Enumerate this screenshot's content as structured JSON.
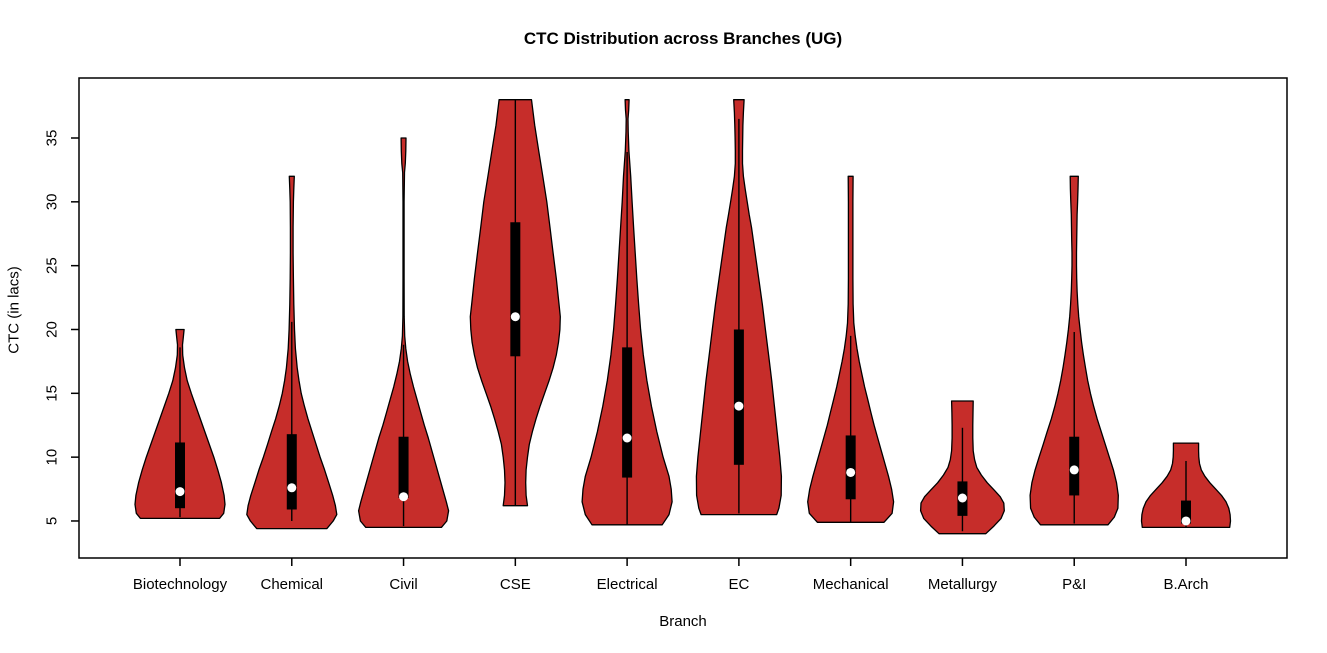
{
  "chart_data": {
    "type": "violin",
    "title": "CTC Distribution across Branches (UG)",
    "xlabel": "Branch",
    "ylabel": "CTC (in lacs)",
    "ylim": [
      2.1,
      39.7
    ],
    "yticks": [
      5,
      10,
      15,
      20,
      25,
      30,
      35
    ],
    "grid": "off",
    "fill_color": "#C62D2A",
    "outline_color": "#000000",
    "box_color": "#000000",
    "median_dot_color": "#ffffff",
    "categories": [
      "Biotechnology",
      "Chemical",
      "Civil",
      "CSE",
      "Electrical",
      "EC",
      "Mechanical",
      "Metallurgy",
      "P&I",
      "B.Arch"
    ],
    "violins": [
      {
        "branch": "Biotechnology",
        "range": [
          5.2,
          20
        ],
        "q1": 6.0,
        "q3": 11.15,
        "median": 7.3,
        "whiskers": [
          5.3,
          18.6
        ],
        "profile": [
          [
            20,
            0.09
          ],
          [
            19.3,
            0.07
          ],
          [
            18.8,
            0.055
          ],
          [
            18,
            0.06
          ],
          [
            17,
            0.1
          ],
          [
            16,
            0.16
          ],
          [
            15,
            0.25
          ],
          [
            14,
            0.35
          ],
          [
            13,
            0.45
          ],
          [
            12,
            0.55
          ],
          [
            11,
            0.65
          ],
          [
            10,
            0.75
          ],
          [
            9,
            0.84
          ],
          [
            8,
            0.92
          ],
          [
            7,
            0.98
          ],
          [
            6.3,
            1.0
          ],
          [
            5.6,
            0.97
          ],
          [
            5.2,
            0.88
          ]
        ]
      },
      {
        "branch": "Chemical",
        "range": [
          4.4,
          32
        ],
        "q1": 5.9,
        "q3": 11.8,
        "median": 7.6,
        "whiskers": [
          5.0,
          20.6
        ],
        "profile": [
          [
            32,
            0.055
          ],
          [
            31,
            0.045
          ],
          [
            30,
            0.035
          ],
          [
            28,
            0.03
          ],
          [
            26,
            0.03
          ],
          [
            24,
            0.035
          ],
          [
            22,
            0.045
          ],
          [
            20,
            0.06
          ],
          [
            18.5,
            0.08
          ],
          [
            17,
            0.12
          ],
          [
            16,
            0.16
          ],
          [
            15,
            0.21
          ],
          [
            14,
            0.28
          ],
          [
            13,
            0.36
          ],
          [
            12,
            0.45
          ],
          [
            11,
            0.54
          ],
          [
            10,
            0.63
          ],
          [
            9,
            0.73
          ],
          [
            8,
            0.82
          ],
          [
            7,
            0.91
          ],
          [
            6.2,
            0.97
          ],
          [
            5.5,
            1.0
          ],
          [
            5.0,
            0.92
          ],
          [
            4.4,
            0.78
          ]
        ]
      },
      {
        "branch": "Civil",
        "range": [
          4.5,
          35
        ],
        "q1": 6.8,
        "q3": 11.6,
        "median": 6.9,
        "whiskers": [
          4.6,
          18.8
        ],
        "profile": [
          [
            35,
            0.055
          ],
          [
            34,
            0.05
          ],
          [
            33,
            0.038
          ],
          [
            32.3,
            0.02
          ],
          [
            30,
            0.012
          ],
          [
            27,
            0.012
          ],
          [
            24,
            0.012
          ],
          [
            21,
            0.015
          ],
          [
            19.5,
            0.025
          ],
          [
            18.5,
            0.05
          ],
          [
            17.5,
            0.09
          ],
          [
            16.5,
            0.15
          ],
          [
            15.5,
            0.22
          ],
          [
            14.5,
            0.3
          ],
          [
            13.5,
            0.38
          ],
          [
            12.5,
            0.46
          ],
          [
            11.5,
            0.55
          ],
          [
            10.5,
            0.63
          ],
          [
            9.5,
            0.71
          ],
          [
            8.5,
            0.79
          ],
          [
            7.5,
            0.87
          ],
          [
            6.5,
            0.95
          ],
          [
            5.8,
            1.0
          ],
          [
            5.0,
            0.96
          ],
          [
            4.5,
            0.84
          ]
        ]
      },
      {
        "branch": "CSE",
        "range": [
          6.2,
          38
        ],
        "q1": 17.9,
        "q3": 28.4,
        "median": 21,
        "whiskers": [
          6.2,
          38
        ],
        "profile": [
          [
            38,
            0.36
          ],
          [
            36,
            0.43
          ],
          [
            34,
            0.52
          ],
          [
            32,
            0.61
          ],
          [
            30,
            0.7
          ],
          [
            28,
            0.77
          ],
          [
            26,
            0.84
          ],
          [
            24,
            0.91
          ],
          [
            22,
            0.97
          ],
          [
            21,
            1.0
          ],
          [
            20,
            0.99
          ],
          [
            19,
            0.96
          ],
          [
            18,
            0.91
          ],
          [
            17,
            0.84
          ],
          [
            16,
            0.75
          ],
          [
            15,
            0.65
          ],
          [
            14,
            0.55
          ],
          [
            13,
            0.46
          ],
          [
            12,
            0.38
          ],
          [
            11,
            0.31
          ],
          [
            10,
            0.27
          ],
          [
            9,
            0.24
          ],
          [
            8,
            0.23
          ],
          [
            7,
            0.24
          ],
          [
            6.2,
            0.27
          ]
        ]
      },
      {
        "branch": "Electrical",
        "range": [
          4.7,
          38
        ],
        "q1": 8.4,
        "q3": 18.6,
        "median": 11.5,
        "whiskers": [
          4.7,
          33.9
        ],
        "profile": [
          [
            38,
            0.045
          ],
          [
            37.2,
            0.035
          ],
          [
            36.5,
            0.02
          ],
          [
            35.5,
            0.025
          ],
          [
            34,
            0.04
          ],
          [
            33,
            0.06
          ],
          [
            32,
            0.08
          ],
          [
            30,
            0.11
          ],
          [
            28,
            0.145
          ],
          [
            26,
            0.18
          ],
          [
            24,
            0.215
          ],
          [
            22,
            0.255
          ],
          [
            20,
            0.3
          ],
          [
            18,
            0.36
          ],
          [
            16,
            0.44
          ],
          [
            14,
            0.54
          ],
          [
            12,
            0.66
          ],
          [
            10,
            0.8
          ],
          [
            8.5,
            0.93
          ],
          [
            7.5,
            0.98
          ],
          [
            6.5,
            1.0
          ],
          [
            5.5,
            0.93
          ],
          [
            4.7,
            0.78
          ]
        ]
      },
      {
        "branch": "EC",
        "range": [
          5.5,
          38
        ],
        "q1": 9.4,
        "q3": 20,
        "median": 14,
        "whiskers": [
          5.6,
          36.5
        ],
        "profile": [
          [
            38,
            0.115
          ],
          [
            37,
            0.1
          ],
          [
            36,
            0.09
          ],
          [
            35,
            0.085
          ],
          [
            34,
            0.08
          ],
          [
            33,
            0.08
          ],
          [
            32,
            0.1
          ],
          [
            31,
            0.14
          ],
          [
            30,
            0.185
          ],
          [
            29,
            0.23
          ],
          [
            28,
            0.28
          ],
          [
            26,
            0.36
          ],
          [
            24,
            0.44
          ],
          [
            22,
            0.52
          ],
          [
            20,
            0.59
          ],
          [
            18,
            0.66
          ],
          [
            16,
            0.73
          ],
          [
            14,
            0.79
          ],
          [
            12,
            0.85
          ],
          [
            10,
            0.91
          ],
          [
            8.5,
            0.945
          ],
          [
            7,
            0.94
          ],
          [
            6,
            0.89
          ],
          [
            5.5,
            0.84
          ]
        ]
      },
      {
        "branch": "Mechanical",
        "range": [
          4.9,
          32
        ],
        "q1": 6.7,
        "q3": 11.7,
        "median": 8.8,
        "whiskers": [
          4.9,
          19.5
        ],
        "profile": [
          [
            32,
            0.055
          ],
          [
            30,
            0.05
          ],
          [
            28,
            0.05
          ],
          [
            26,
            0.05
          ],
          [
            24,
            0.05
          ],
          [
            22,
            0.055
          ],
          [
            20.5,
            0.07
          ],
          [
            19.5,
            0.1
          ],
          [
            18.5,
            0.14
          ],
          [
            17.5,
            0.19
          ],
          [
            16.5,
            0.25
          ],
          [
            15.5,
            0.31
          ],
          [
            14.5,
            0.38
          ],
          [
            13.5,
            0.45
          ],
          [
            12.5,
            0.52
          ],
          [
            11.5,
            0.6
          ],
          [
            10.5,
            0.68
          ],
          [
            9.5,
            0.76
          ],
          [
            8.5,
            0.84
          ],
          [
            7.5,
            0.91
          ],
          [
            6.5,
            0.955
          ],
          [
            5.6,
            0.92
          ],
          [
            4.9,
            0.74
          ]
        ]
      },
      {
        "branch": "Metallurgy",
        "range": [
          4.0,
          14.4
        ],
        "q1": 5.4,
        "q3": 8.1,
        "median": 6.8,
        "whiskers": [
          4.2,
          12.3
        ],
        "profile": [
          [
            14.4,
            0.24
          ],
          [
            13.5,
            0.235
          ],
          [
            12.5,
            0.23
          ],
          [
            11.5,
            0.23
          ],
          [
            10.5,
            0.24
          ],
          [
            9.8,
            0.27
          ],
          [
            9.2,
            0.32
          ],
          [
            8.6,
            0.42
          ],
          [
            8.0,
            0.55
          ],
          [
            7.4,
            0.71
          ],
          [
            6.9,
            0.84
          ],
          [
            6.4,
            0.92
          ],
          [
            5.8,
            0.93
          ],
          [
            5.2,
            0.86
          ],
          [
            4.6,
            0.7
          ],
          [
            4.0,
            0.52
          ]
        ]
      },
      {
        "branch": "P&I",
        "range": [
          4.7,
          32
        ],
        "q1": 7.0,
        "q3": 11.6,
        "median": 9.0,
        "whiskers": [
          4.8,
          19.8
        ],
        "profile": [
          [
            32,
            0.09
          ],
          [
            31,
            0.085
          ],
          [
            30,
            0.075
          ],
          [
            29,
            0.065
          ],
          [
            28,
            0.06
          ],
          [
            27,
            0.055
          ],
          [
            26,
            0.05
          ],
          [
            25,
            0.05
          ],
          [
            24,
            0.055
          ],
          [
            23,
            0.065
          ],
          [
            22,
            0.08
          ],
          [
            21,
            0.1
          ],
          [
            20,
            0.13
          ],
          [
            19,
            0.165
          ],
          [
            18,
            0.205
          ],
          [
            17,
            0.25
          ],
          [
            16,
            0.3
          ],
          [
            15,
            0.36
          ],
          [
            14,
            0.43
          ],
          [
            13,
            0.51
          ],
          [
            12,
            0.6
          ],
          [
            11,
            0.69
          ],
          [
            10,
            0.78
          ],
          [
            9,
            0.87
          ],
          [
            8,
            0.94
          ],
          [
            7,
            0.98
          ],
          [
            6,
            0.97
          ],
          [
            5.3,
            0.89
          ],
          [
            4.7,
            0.75
          ]
        ]
      },
      {
        "branch": "B.Arch",
        "range": [
          4.5,
          11.1
        ],
        "q1": 4.8,
        "q3": 6.6,
        "median": 5.0,
        "whiskers": [
          4.5,
          9.7
        ],
        "profile": [
          [
            11.1,
            0.28
          ],
          [
            10.5,
            0.28
          ],
          [
            10,
            0.285
          ],
          [
            9.5,
            0.3
          ],
          [
            9,
            0.34
          ],
          [
            8.5,
            0.42
          ],
          [
            8,
            0.53
          ],
          [
            7.5,
            0.66
          ],
          [
            7,
            0.79
          ],
          [
            6.5,
            0.89
          ],
          [
            6,
            0.95
          ],
          [
            5.5,
            0.98
          ],
          [
            5,
            0.99
          ],
          [
            4.5,
            0.97
          ]
        ]
      }
    ]
  }
}
